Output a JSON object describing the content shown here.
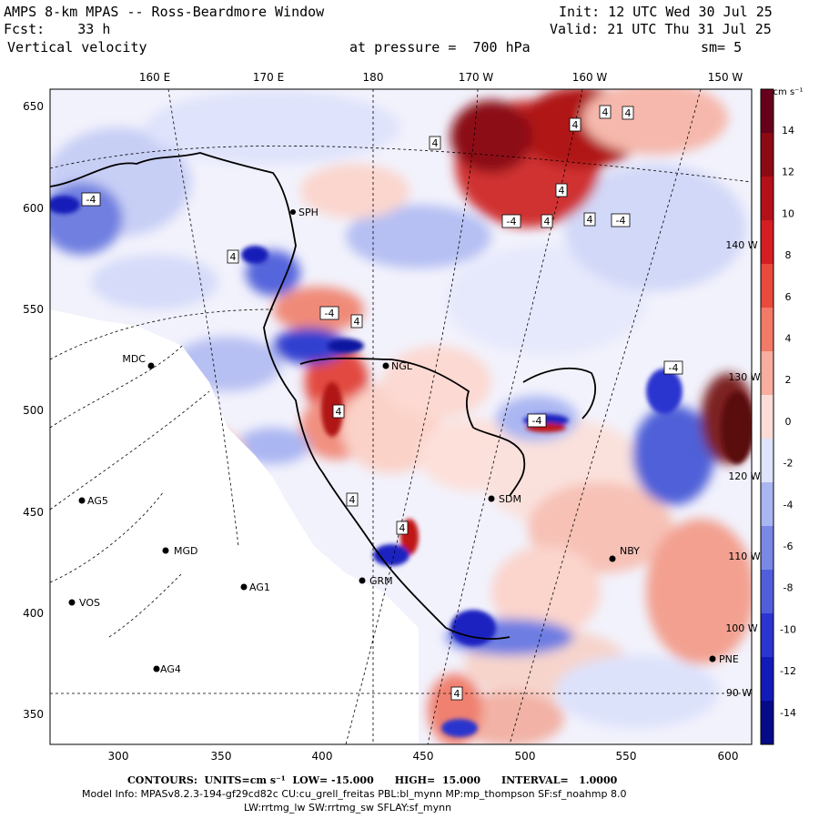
{
  "header": {
    "line1_left": "AMPS 8-km MPAS -- Ross-Beardmore Window",
    "line2_left": "Fcst:    33 h",
    "line3_left": "Vertical velocity",
    "pressure": "at pressure =  700 hPa",
    "line1_right": "Init: 12 UTC Wed 30 Jul 25",
    "line2_right": "Valid: 21 UTC Thu 31 Jul 25",
    "smoothing": "sm= 5"
  },
  "map": {
    "top_lon_labels": [
      "160 E",
      "170 E",
      "180",
      "170 W",
      "160 W",
      "150 W"
    ],
    "right_lon_labels": [
      "140 W",
      "130 W",
      "120 W",
      "110 W",
      "100 W",
      "90 W"
    ],
    "x_ticks": [
      "300",
      "350",
      "400",
      "450",
      "500",
      "550",
      "600"
    ],
    "y_ticks": [
      "650",
      "600",
      "550",
      "500",
      "450",
      "400",
      "350"
    ],
    "stations": [
      {
        "name": "MDC",
        "label_side": "left"
      },
      {
        "name": "AG5",
        "label_side": "right"
      },
      {
        "name": "MGD",
        "label_side": "right"
      },
      {
        "name": "AG1",
        "label_side": "right"
      },
      {
        "name": "VOS",
        "label_side": "right"
      },
      {
        "name": "AG4",
        "label_side": "right"
      },
      {
        "name": "NGL",
        "label_side": "right"
      },
      {
        "name": "SDM",
        "label_side": "right"
      },
      {
        "name": "GRM",
        "label_side": "right"
      },
      {
        "name": "NBY",
        "label_side": "right"
      },
      {
        "name": "PNE",
        "label_side": "right"
      },
      {
        "name": "SPH",
        "label_side": "right"
      }
    ],
    "contour_labels": [
      "4",
      "4",
      "4",
      "4",
      "-4",
      "4",
      "-4",
      "4",
      "4",
      "-4",
      "4",
      "-4",
      "4",
      "4",
      "-4",
      "-4",
      "4",
      "4",
      "4"
    ]
  },
  "colorbar": {
    "units": "cm s⁻¹",
    "tick_labels": [
      "14",
      "12",
      "10",
      "8",
      "6",
      "4",
      "2",
      "0",
      "-2",
      "-4",
      "-6",
      "-8",
      "-10",
      "-12",
      "-14"
    ],
    "colors": [
      "#67001a",
      "#8c0a14",
      "#b3101a",
      "#d41e22",
      "#ea4a3c",
      "#f27a66",
      "#f8ada0",
      "#fcdcd6",
      "#dfe3fb",
      "#aab6f2",
      "#7a88e6",
      "#4f5fdc",
      "#2b35cf",
      "#121ab8",
      "#050a88"
    ]
  },
  "footer": {
    "contours": "CONTOURS:  UNITS=cm s⁻¹  LOW= -15.000      HIGH=  15.000      INTERVAL=   1.0000",
    "model_info": "Model Info: MPASv8.2.3-194-gf29cd82c CU:cu_grell_freitas PBL:bl_mynn MP:mp_thompson SF:sf_noahmp 8.0",
    "model_info2": "LW:rrtmg_lw SW:rrtmg_sw SFLAY:sf_mynn"
  }
}
